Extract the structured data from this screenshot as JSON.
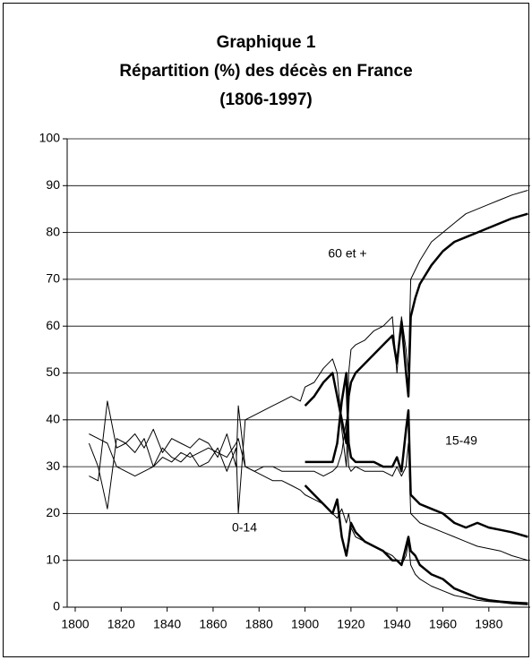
{
  "chart_data": {
    "type": "line",
    "title": [
      "Graphique 1",
      "Répartition (%) des décès en France",
      "(1806-1997)"
    ],
    "annotations": [
      "60 et +",
      "15-49",
      "0-14"
    ],
    "x": [
      1806,
      1810,
      1814,
      1818,
      1822,
      1826,
      1830,
      1834,
      1838,
      1842,
      1846,
      1850,
      1854,
      1858,
      1862,
      1866,
      1870,
      1871,
      1874,
      1878,
      1882,
      1886,
      1890,
      1894,
      1898,
      1900,
      1904,
      1908,
      1912,
      1914,
      1916,
      1918,
      1919,
      1920,
      1922,
      1926,
      1930,
      1934,
      1938,
      1940,
      1942,
      1944,
      1945,
      1946,
      1948,
      1950,
      1955,
      1960,
      1965,
      1970,
      1975,
      1980,
      1985,
      1990,
      1997
    ],
    "series": [
      {
        "color": "#000000",
        "line_width": 1,
        "values": [
          35,
          30,
          21,
          36,
          35,
          33,
          36,
          30,
          34,
          32,
          31,
          33,
          30,
          31,
          34,
          29,
          34,
          20,
          40,
          41,
          42,
          43,
          44,
          45,
          44,
          47,
          48,
          51,
          53,
          50,
          38,
          30,
          50,
          55,
          56,
          57,
          59,
          60,
          62,
          50,
          62,
          55,
          50,
          70,
          72,
          74,
          78,
          80,
          82,
          84,
          85,
          86,
          87,
          88,
          89
        ]
      },
      {
        "color": "#000000",
        "line_width": 2.5,
        "values": [
          null,
          null,
          null,
          null,
          null,
          null,
          null,
          null,
          null,
          null,
          null,
          null,
          null,
          null,
          null,
          null,
          null,
          null,
          null,
          null,
          null,
          null,
          null,
          null,
          null,
          43,
          45,
          48,
          50,
          45,
          40,
          35,
          45,
          48,
          50,
          52,
          54,
          56,
          58,
          52,
          61,
          50,
          45,
          62,
          66,
          69,
          73,
          76,
          78,
          79,
          80,
          81,
          82,
          83,
          84
        ]
      },
      {
        "color": "#000000",
        "line_width": 1,
        "values": [
          28,
          27,
          44,
          34,
          35,
          37,
          34,
          38,
          33,
          36,
          35,
          34,
          36,
          35,
          32,
          37,
          30,
          43,
          30,
          29,
          30,
          30,
          29,
          29,
          29,
          29,
          29,
          28,
          29,
          30,
          33,
          40,
          30,
          29,
          30,
          29,
          29,
          29,
          28,
          30,
          28,
          30,
          35,
          20,
          19,
          18,
          17,
          16,
          15,
          14,
          13,
          12.5,
          12,
          11,
          10
        ]
      },
      {
        "color": "#000000",
        "line_width": 2.5,
        "values": [
          null,
          null,
          null,
          null,
          null,
          null,
          null,
          null,
          null,
          null,
          null,
          null,
          null,
          null,
          null,
          null,
          null,
          null,
          null,
          null,
          null,
          null,
          null,
          null,
          null,
          31,
          31,
          31,
          31,
          35,
          44,
          50,
          35,
          32,
          31,
          31,
          31,
          30,
          30,
          32,
          29,
          38,
          42,
          24,
          23,
          22,
          21,
          20,
          18,
          17,
          18,
          17,
          16.5,
          16,
          15
        ]
      },
      {
        "color": "#000000",
        "line_width": 1,
        "values": [
          37,
          36,
          35,
          30,
          29,
          28,
          29,
          30,
          32,
          31,
          33,
          32,
          33,
          34,
          33,
          32,
          35,
          36,
          30,
          29,
          28,
          27,
          27,
          26,
          25,
          24,
          23,
          22,
          20,
          19,
          21,
          18,
          20,
          17,
          15,
          14,
          13,
          12,
          11,
          10,
          9,
          11,
          14,
          9,
          7,
          6,
          4.5,
          3.5,
          2.5,
          2,
          1.5,
          1.2,
          1,
          0.7,
          0.5
        ]
      },
      {
        "color": "#000000",
        "line_width": 2.5,
        "values": [
          null,
          null,
          null,
          null,
          null,
          null,
          null,
          null,
          null,
          null,
          null,
          null,
          null,
          null,
          null,
          null,
          null,
          null,
          null,
          null,
          null,
          null,
          null,
          null,
          null,
          26,
          24,
          22,
          20,
          23,
          15,
          11,
          14,
          18,
          16,
          14,
          13,
          12,
          10,
          10,
          9,
          13,
          15,
          12,
          11,
          9,
          7,
          6,
          4,
          3,
          2,
          1.5,
          1.2,
          1,
          0.8
        ]
      }
    ],
    "xlim": [
      1796.5,
      1998
    ],
    "xticks": [
      1800,
      1820,
      1840,
      1860,
      1880,
      1900,
      1920,
      1940,
      1960,
      1980
    ],
    "ylim": [
      0,
      100
    ],
    "yticks": [
      0,
      10,
      20,
      30,
      40,
      50,
      60,
      70,
      80,
      90,
      100
    ],
    "grid": true
  }
}
